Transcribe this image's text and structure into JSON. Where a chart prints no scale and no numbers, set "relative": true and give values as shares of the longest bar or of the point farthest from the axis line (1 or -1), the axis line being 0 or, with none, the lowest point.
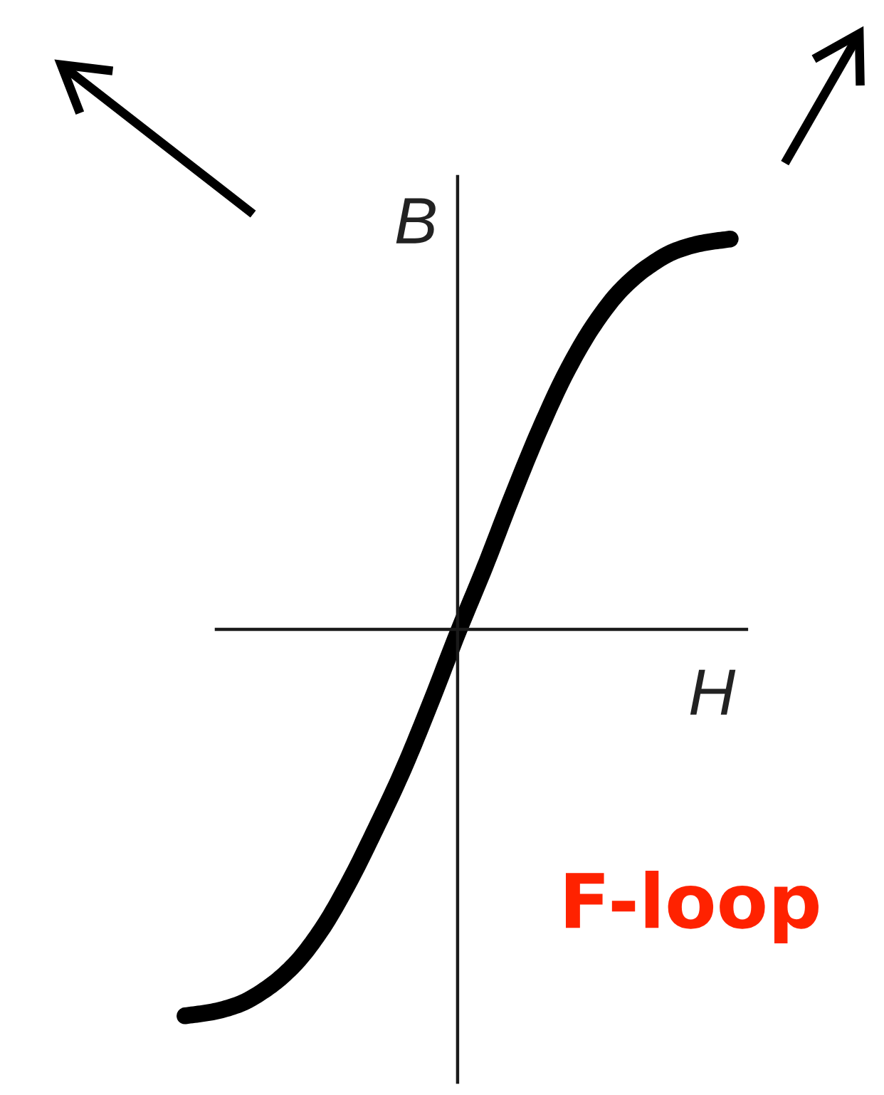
{
  "chart_data": {
    "type": "line",
    "xlabel": "H",
    "ylabel": "B",
    "annotations": [
      "F-loop"
    ],
    "relative": true,
    "line_style": "solid",
    "categories": [
      null,
      null,
      null,
      null,
      null,
      null,
      null,
      null,
      null,
      null,
      null,
      null,
      null,
      null,
      null,
      null,
      null,
      null,
      null,
      null,
      null
    ],
    "series": [
      {
        "color": "#000000",
        "values": [
          -0.99,
          -0.98,
          -0.96,
          -0.92,
          -0.86,
          -0.77,
          -0.65,
          -0.51,
          -0.36,
          -0.19,
          -0.01,
          0.16,
          0.34,
          0.51,
          0.66,
          0.78,
          0.87,
          0.93,
          0.97,
          0.99,
          1
        ]
      }
    ]
  }
}
